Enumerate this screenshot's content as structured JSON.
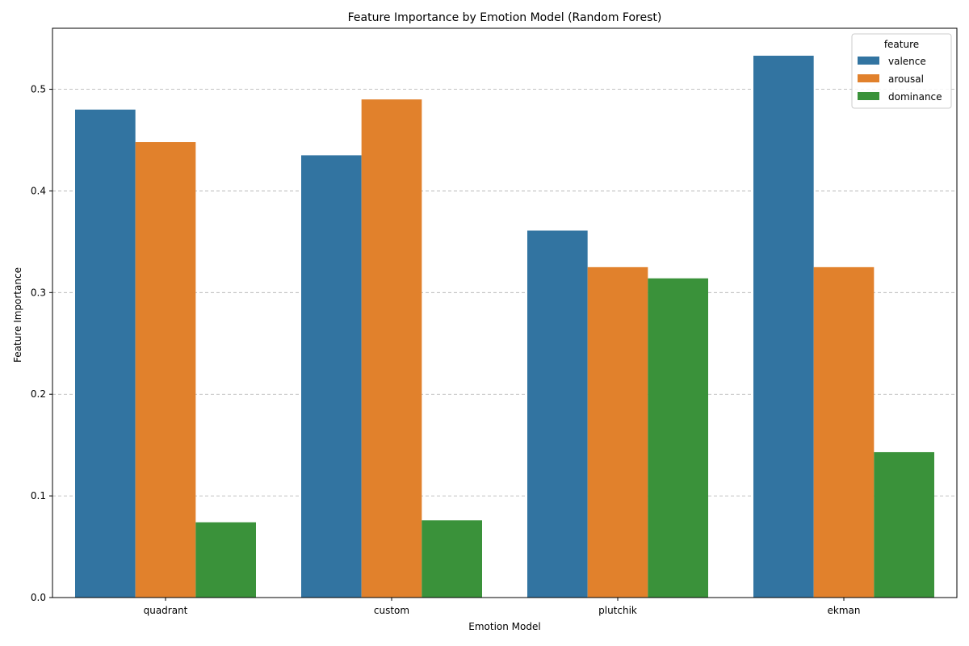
{
  "chart_data": {
    "type": "bar",
    "title": "Feature Importance by Emotion Model (Random Forest)",
    "xlabel": "Emotion Model",
    "ylabel": "Feature Importance",
    "categories": [
      "quadrant",
      "custom",
      "plutchik",
      "ekman"
    ],
    "series": [
      {
        "name": "valence",
        "color": "#3274a1",
        "values": [
          0.48,
          0.435,
          0.361,
          0.533
        ]
      },
      {
        "name": "arousal",
        "color": "#e1812c",
        "values": [
          0.448,
          0.49,
          0.325,
          0.325
        ]
      },
      {
        "name": "dominance",
        "color": "#3a923a",
        "values": [
          0.074,
          0.076,
          0.314,
          0.143
        ]
      }
    ],
    "ylim": [
      0,
      0.56
    ],
    "yticks": [
      "0.0",
      "0.1",
      "0.2",
      "0.3",
      "0.4",
      "0.5"
    ],
    "grid": "horizontal-dashed",
    "legend": {
      "title": "feature",
      "placement": "top-right"
    }
  }
}
